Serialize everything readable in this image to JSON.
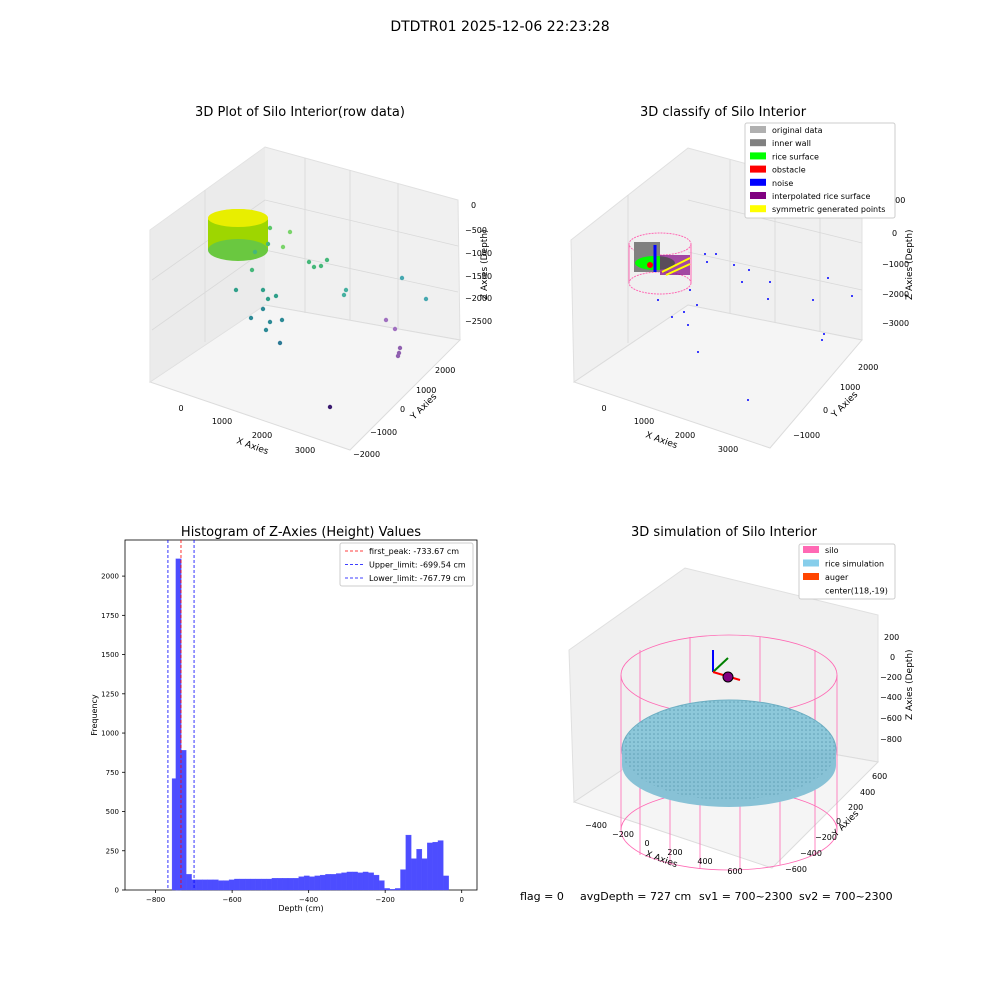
{
  "figure": {
    "suptitle": "DTDTR01 2025-12-06 22:23:28",
    "footer": {
      "flag": "flag = 0",
      "avg": "avgDepth = 727 cm",
      "sv1": "sv1 = 700~2300",
      "sv2": "sv2 = 700~2300"
    }
  },
  "panel1": {
    "title": "3D Plot of Silo Interior(row data)",
    "xlabel": "X Axies",
    "ylabel": "Y Axies",
    "zlabel": "Z Axies (Depth)",
    "xticks": [
      "0",
      "1000",
      "2000",
      "3000"
    ],
    "yticks": [
      "2000",
      "1000",
      "0",
      "−1000",
      "−2000"
    ],
    "zticks": [
      "0",
      "−500",
      "−1000",
      "−1500",
      "−2000",
      "−2500"
    ]
  },
  "panel2": {
    "title": "3D classify of Silo Interior",
    "xlabel": "X Axies",
    "ylabel": "Y Axies",
    "zlabel": "Z Axies (Depth)",
    "xticks": [
      "0",
      "1000",
      "2000",
      "3000"
    ],
    "yticks": [
      "2000",
      "1000",
      "0",
      "−1000"
    ],
    "zticks": [
      "1000",
      "0",
      "−1000",
      "−2000",
      "−3000"
    ],
    "legend": [
      {
        "label": "original data",
        "color": "#b0b0b0"
      },
      {
        "label": "inner wall",
        "color": "#808080"
      },
      {
        "label": "rice surface",
        "color": "#00ff00"
      },
      {
        "label": "obstacle",
        "color": "#ff0000"
      },
      {
        "label": "noise",
        "color": "#0000ff"
      },
      {
        "label": "interpolated rice surface",
        "color": "#800080"
      },
      {
        "label": "symmetric generated points",
        "color": "#ffff00"
      }
    ]
  },
  "panel4": {
    "title": "3D simulation of Silo Interior",
    "xlabel": "X Axies",
    "ylabel": "Y Axies",
    "zlabel": "Z Axies (Depth)",
    "xticks": [
      "−400",
      "−200",
      "0",
      "200",
      "400",
      "600"
    ],
    "yticks": [
      "600",
      "400",
      "200",
      "0",
      "−200",
      "−400",
      "−600"
    ],
    "zticks": [
      "200",
      "0",
      "−200",
      "−400",
      "−600",
      "−800"
    ],
    "legend": [
      {
        "label": "silo",
        "color": "#ff69b4"
      },
      {
        "label": "rice simulation",
        "color": "#87ceeb"
      },
      {
        "label": "auger",
        "color": "#ff4500"
      },
      {
        "label": "center(118,-19)",
        "color": ""
      }
    ]
  },
  "chart_data": {
    "type": "bar",
    "title": "Histogram of Z-Axies (Height) Values",
    "xlabel": "Depth (cm)",
    "ylabel": "Frequency",
    "xlim": [
      -880,
      40
    ],
    "ylim": [
      0,
      2230
    ],
    "xticks": [
      -800,
      -600,
      -400,
      -200,
      0
    ],
    "yticks": [
      0,
      250,
      500,
      750,
      1000,
      1250,
      1500,
      1750,
      2000
    ],
    "bin_width": 14,
    "bins": [
      [
        -733,
        0
      ],
      [
        -740,
        60
      ],
      [
        -750,
        710
      ],
      [
        -740,
        2110
      ],
      [
        -727,
        890
      ],
      [
        -713,
        100
      ],
      [
        -699,
        65
      ],
      [
        -685,
        65
      ],
      [
        -671,
        65
      ],
      [
        -657,
        65
      ],
      [
        -643,
        65
      ],
      [
        -629,
        60
      ],
      [
        -615,
        60
      ],
      [
        -601,
        65
      ],
      [
        -587,
        70
      ],
      [
        -573,
        70
      ],
      [
        -559,
        70
      ],
      [
        -545,
        70
      ],
      [
        -531,
        70
      ],
      [
        -517,
        70
      ],
      [
        -503,
        70
      ],
      [
        -489,
        75
      ],
      [
        -475,
        75
      ],
      [
        -461,
        75
      ],
      [
        -447,
        75
      ],
      [
        -433,
        75
      ],
      [
        -419,
        85
      ],
      [
        -405,
        90
      ],
      [
        -391,
        85
      ],
      [
        -377,
        90
      ],
      [
        -363,
        95
      ],
      [
        -349,
        100
      ],
      [
        -335,
        100
      ],
      [
        -321,
        105
      ],
      [
        -307,
        110
      ],
      [
        -293,
        115
      ],
      [
        -279,
        115
      ],
      [
        -265,
        110
      ],
      [
        -251,
        115
      ],
      [
        -237,
        110
      ],
      [
        -223,
        95
      ],
      [
        -209,
        60
      ],
      [
        -195,
        10
      ],
      [
        -181,
        5
      ],
      [
        -167,
        10
      ],
      [
        -153,
        130
      ],
      [
        -139,
        350
      ],
      [
        -125,
        200
      ],
      [
        -111,
        260
      ],
      [
        -97,
        200
      ],
      [
        -83,
        300
      ],
      [
        -69,
        305
      ],
      [
        -55,
        315
      ],
      [
        -41,
        90
      ]
    ],
    "vlines": [
      {
        "name": "first_peak: -733.67 cm",
        "x": -733.67,
        "color": "#ff0000"
      },
      {
        "name": "Upper_limit: -699.54 cm",
        "x": -699.54,
        "color": "#0000ff"
      },
      {
        "name": "Lower_limit: -767.79 cm",
        "x": -767.79,
        "color": "#0000ff"
      }
    ],
    "legend": "top-right"
  }
}
